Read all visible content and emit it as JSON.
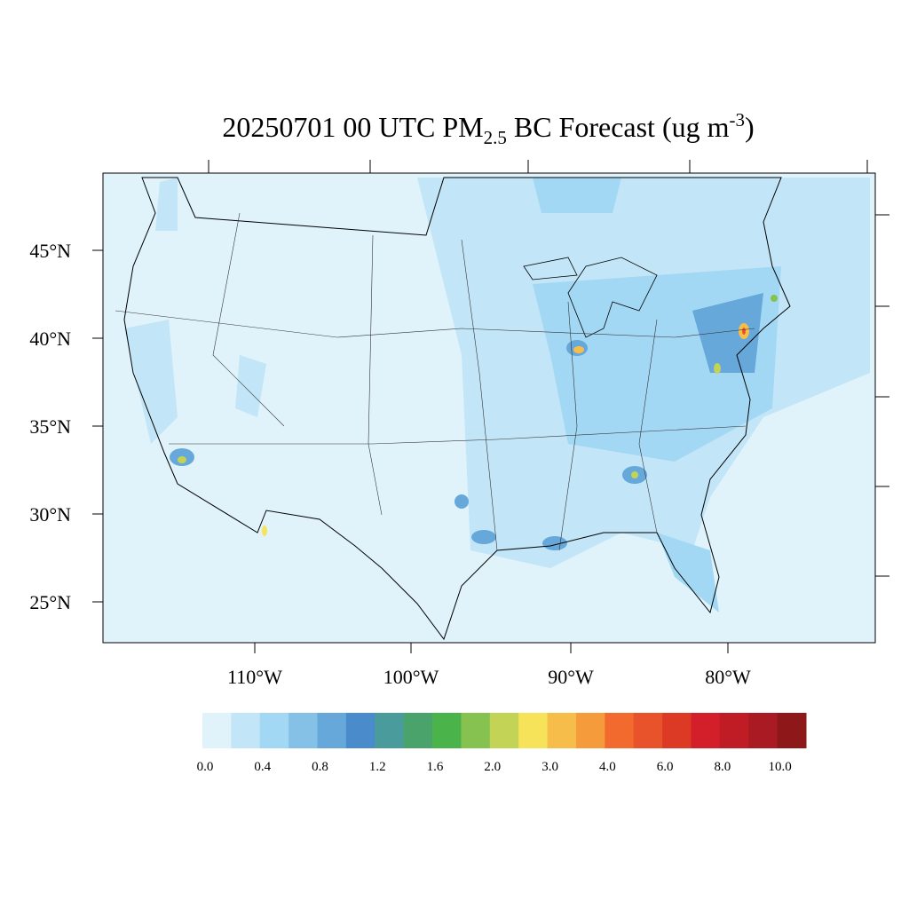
{
  "title": {
    "main": "20250701 00 UTC PM",
    "sub": "2.5",
    "rest": " BC Forecast (ug m",
    "sup": "-3",
    "end": ")"
  },
  "lat_labels": [
    "45°N",
    "40°N",
    "35°N",
    "30°N",
    "25°N"
  ],
  "lon_labels": [
    "110°W",
    "100°W",
    "90°W",
    "80°W"
  ],
  "colorbar": {
    "colors": [
      "#e0f3fb",
      "#c2e5f7",
      "#a3d8f5",
      "#85c0e6",
      "#67a8da",
      "#4a8bcc",
      "#4a9c9c",
      "#4aa36b",
      "#4ab44a",
      "#85c24f",
      "#c3d356",
      "#f6e35a",
      "#f6bd4a",
      "#f59b3b",
      "#f36a2e",
      "#e9532b",
      "#dd3a26",
      "#d31f2a",
      "#c01c26",
      "#a91a22",
      "#8e1719"
    ],
    "labels": [
      "0.0",
      "0.4",
      "0.8",
      "1.2",
      "1.6",
      "2.0",
      "3.0",
      "4.0",
      "6.0",
      "8.0",
      "10.0"
    ]
  }
}
